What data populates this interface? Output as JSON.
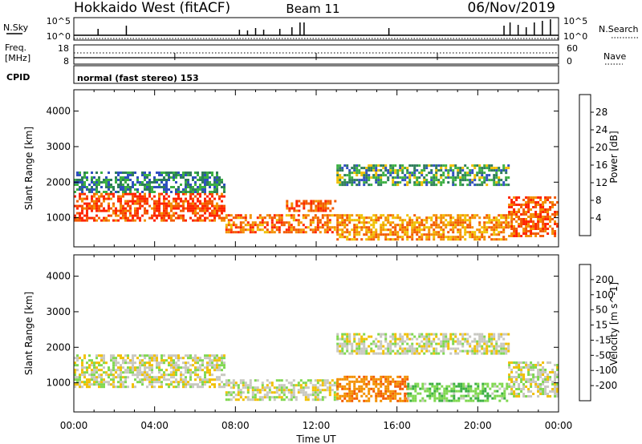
{
  "header": {
    "station": "Hokkaido West (fitACF)",
    "beam": "Beam 11",
    "date": "06/Nov/2019"
  },
  "strip": {
    "nsky_label": "N.Sky",
    "nsky_ticks": [
      "10^5",
      "10^0"
    ],
    "nsearch_label": "N.Search",
    "nsearch_ticks": [
      "10^5",
      "10^0"
    ],
    "freq_label_line1": "Freq.",
    "freq_label_line2": "[MHz]",
    "freq_ticks": [
      "18",
      "8"
    ],
    "nave_label": "Nave",
    "nave_ticks": [
      "60",
      "0"
    ],
    "cpid_label": "CPID",
    "cpid_text": "normal (fast stereo) 153"
  },
  "chart_data": [
    {
      "type": "heatmap",
      "name": "power-panel",
      "ylabel": "Slant Range [km]",
      "ylim": [
        180,
        4600
      ],
      "yticks": [
        "1000",
        "2000",
        "3000",
        "4000"
      ],
      "yticks_values": [
        1000,
        2000,
        3000,
        4000
      ],
      "xlim_hours": [
        0,
        24
      ],
      "colorbar_label": "Power [dB]",
      "colorbar_ticks": [
        "4",
        "8",
        "12",
        "16",
        "20",
        "24",
        "28"
      ],
      "colorbar_colors": [
        "#0000ff",
        "#3050c0",
        "#2e7d5a",
        "#3cb043",
        "#f0c000",
        "#f39000",
        "#f35a00",
        "#ff2400"
      ],
      "echo_regions": [
        {
          "t0": 0.0,
          "t1": 7.5,
          "r0": 900,
          "r1": 1700,
          "value": 28
        },
        {
          "t0": 0.0,
          "t1": 7.5,
          "r0": 1700,
          "r1": 2300,
          "value": 10
        },
        {
          "t0": 7.5,
          "t1": 13.0,
          "r0": 600,
          "r1": 1100,
          "value": 24
        },
        {
          "t0": 10.5,
          "t1": 13.0,
          "r0": 1200,
          "r1": 1500,
          "value": 26
        },
        {
          "t0": 13.0,
          "t1": 21.5,
          "r0": 400,
          "r1": 1100,
          "value": 22
        },
        {
          "t0": 13.0,
          "t1": 21.5,
          "r0": 1900,
          "r1": 2500,
          "value": 12
        },
        {
          "t0": 21.5,
          "t1": 24.0,
          "r0": 500,
          "r1": 1600,
          "value": 26
        }
      ]
    },
    {
      "type": "heatmap",
      "name": "velocity-panel",
      "ylabel": "Slant Range [km]",
      "xlabel": "Time UT",
      "ylim": [
        180,
        4600
      ],
      "yticks": [
        "1000",
        "2000",
        "3000",
        "4000"
      ],
      "yticks_values": [
        1000,
        2000,
        3000,
        4000
      ],
      "xlim_hours": [
        0,
        24
      ],
      "xticks": [
        "00:00",
        "04:00",
        "08:00",
        "12:00",
        "16:00",
        "20:00",
        "00:00"
      ],
      "xticks_values": [
        0,
        4,
        8,
        12,
        16,
        20,
        24
      ],
      "colorbar_label": "Velocity [m s^-1]",
      "colorbar_ticks": [
        "200",
        "100",
        "50",
        "15",
        "-15",
        "-50",
        "-100",
        "-200"
      ],
      "colorbar_colors": [
        "#2030b0",
        "#2e7d5a",
        "#3cb043",
        "#7fd850",
        "#c8c8c0",
        "#f0c000",
        "#f39000",
        "#f35a00",
        "#ff0000"
      ],
      "echo_regions": [
        {
          "t0": 0.0,
          "t1": 7.5,
          "r0": 900,
          "r1": 1800,
          "value": 0
        },
        {
          "t0": 7.5,
          "t1": 13.0,
          "r0": 500,
          "r1": 1100,
          "value": 0
        },
        {
          "t0": 13.0,
          "t1": 16.5,
          "r0": 500,
          "r1": 1200,
          "value": -90
        },
        {
          "t0": 16.5,
          "t1": 21.5,
          "r0": 500,
          "r1": 1000,
          "value": 40
        },
        {
          "t0": 13.0,
          "t1": 21.5,
          "r0": 1800,
          "r1": 2400,
          "value": 0
        },
        {
          "t0": 21.5,
          "t1": 24.0,
          "r0": 600,
          "r1": 1600,
          "value": 0
        }
      ]
    }
  ]
}
